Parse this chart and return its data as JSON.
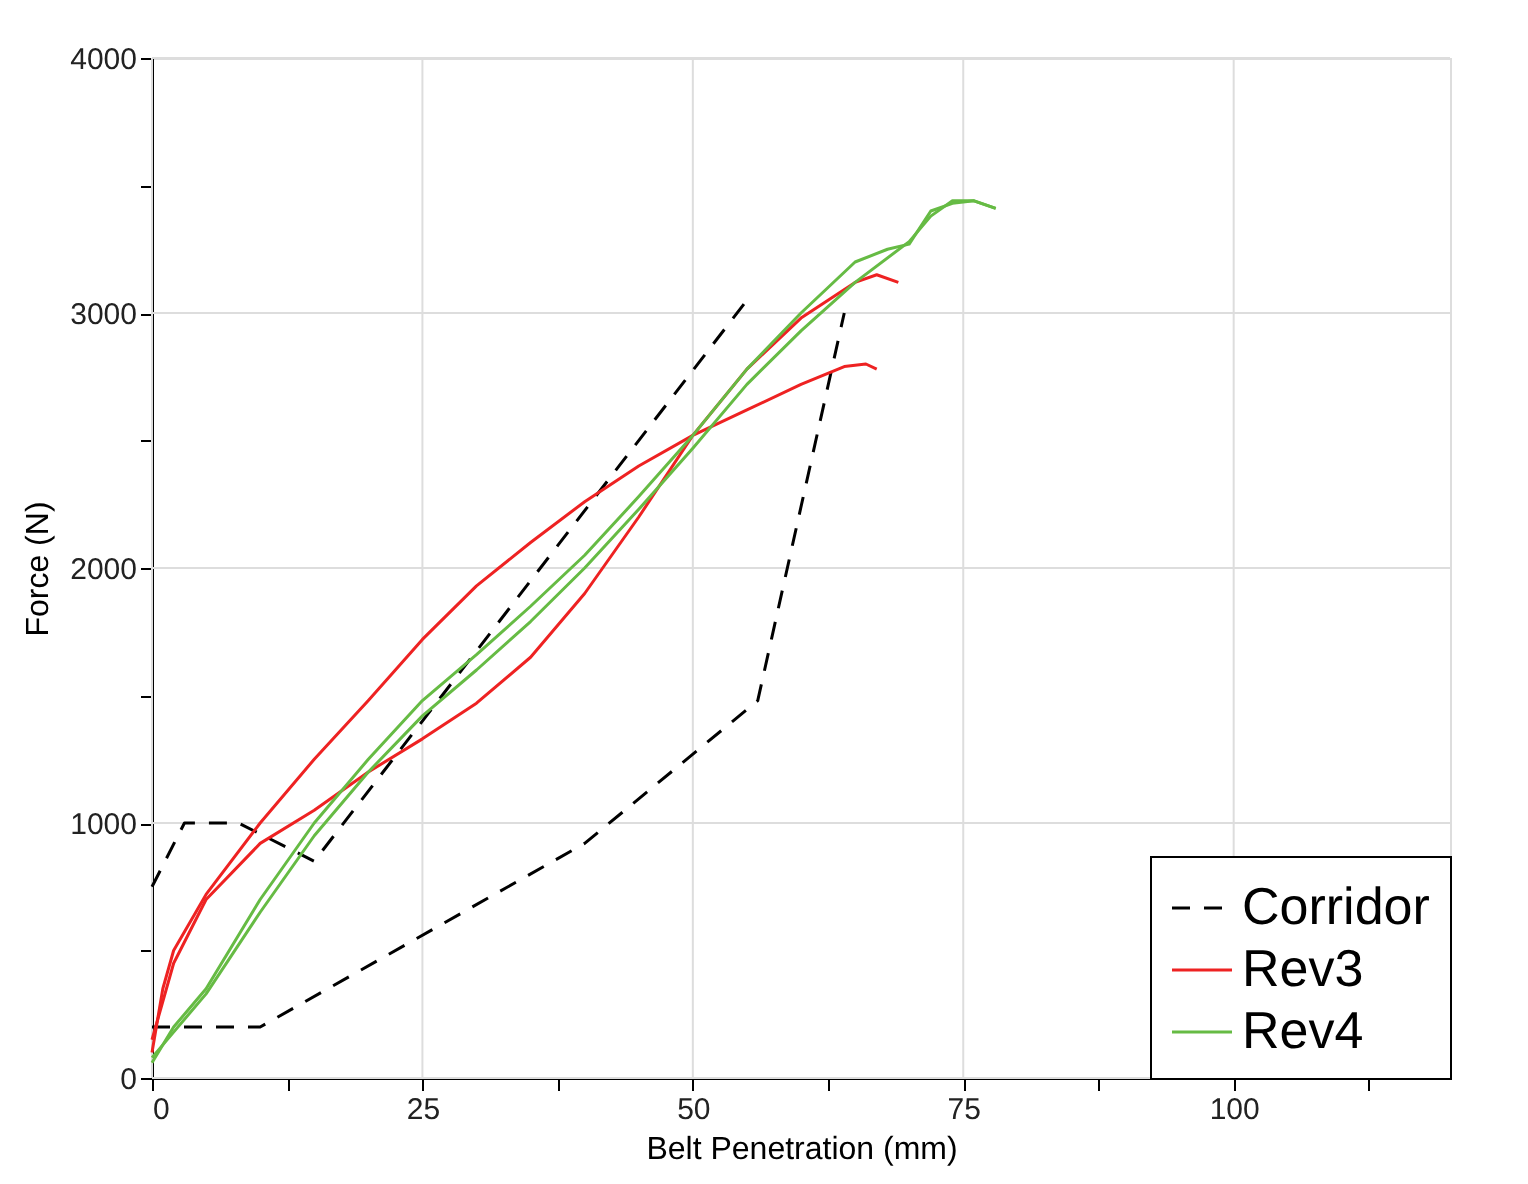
{
  "chart_data": {
    "type": "line",
    "xlabel": "Belt Penetration (mm)",
    "ylabel": "Force (N)",
    "xlim": [
      0,
      120
    ],
    "ylim": [
      0,
      4000
    ],
    "xticks": [
      0,
      {
        "value": 12.5,
        "label": null
      },
      25,
      {
        "value": 37.5,
        "label": null
      },
      50,
      {
        "value": 62.5,
        "label": null
      },
      75,
      {
        "value": 87.5,
        "label": null
      },
      100,
      {
        "value": 112.5,
        "label": null
      }
    ],
    "yticks": [
      0,
      {
        "value": 500,
        "label": null
      },
      1000,
      {
        "value": 1500,
        "label": null
      },
      2000,
      {
        "value": 2500,
        "label": null
      },
      3000,
      {
        "value": 3500,
        "label": null
      },
      4000
    ],
    "grid": true,
    "legend": "bottom right",
    "marker": "none",
    "series": [
      {
        "name": "Corridor",
        "color": "#000000",
        "line_style": "dashed",
        "x": [
          0,
          3,
          8,
          15,
          55,
          null,
          0,
          10,
          40,
          56,
          64
        ],
        "values": [
          750,
          1000,
          1000,
          850,
          3050,
          null,
          200,
          200,
          920,
          1480,
          3000
        ]
      },
      {
        "name": "Rev3",
        "color": "#ee2222",
        "line_style": "solid",
        "x": [
          0,
          1,
          2,
          5,
          10,
          15,
          20,
          25,
          30,
          35,
          40,
          45,
          50,
          55,
          60,
          64,
          66,
          67,
          null,
          0,
          2,
          5,
          10,
          15,
          20,
          25,
          30,
          35,
          40,
          45,
          50,
          55,
          60,
          65,
          67,
          69
        ],
        "values": [
          100,
          350,
          500,
          720,
          1000,
          1250,
          1480,
          1720,
          1930,
          2100,
          2260,
          2400,
          2520,
          2620,
          2720,
          2790,
          2800,
          2780,
          null,
          150,
          450,
          700,
          920,
          1050,
          1200,
          1330,
          1470,
          1650,
          1900,
          2200,
          2520,
          2780,
          2980,
          3120,
          3150,
          3120
        ]
      },
      {
        "name": "Rev4",
        "color": "#66bb44",
        "line_style": "solid",
        "x": [
          0,
          2,
          5,
          10,
          15,
          20,
          25,
          30,
          35,
          40,
          45,
          50,
          55,
          60,
          65,
          68,
          70,
          72,
          74,
          76,
          78,
          null,
          0,
          2,
          5,
          10,
          15,
          20,
          25,
          30,
          35,
          40,
          45,
          50,
          55,
          60,
          65,
          70,
          72,
          74,
          76,
          78
        ],
        "values": [
          60,
          200,
          350,
          700,
          1000,
          1250,
          1480,
          1660,
          1850,
          2050,
          2280,
          2520,
          2780,
          3000,
          3200,
          3250,
          3270,
          3400,
          3430,
          3440,
          3410,
          null,
          80,
          180,
          330,
          650,
          950,
          1200,
          1420,
          1600,
          1790,
          2000,
          2230,
          2470,
          2720,
          2930,
          3120,
          3280,
          3380,
          3440,
          3440,
          3410
        ]
      }
    ]
  }
}
